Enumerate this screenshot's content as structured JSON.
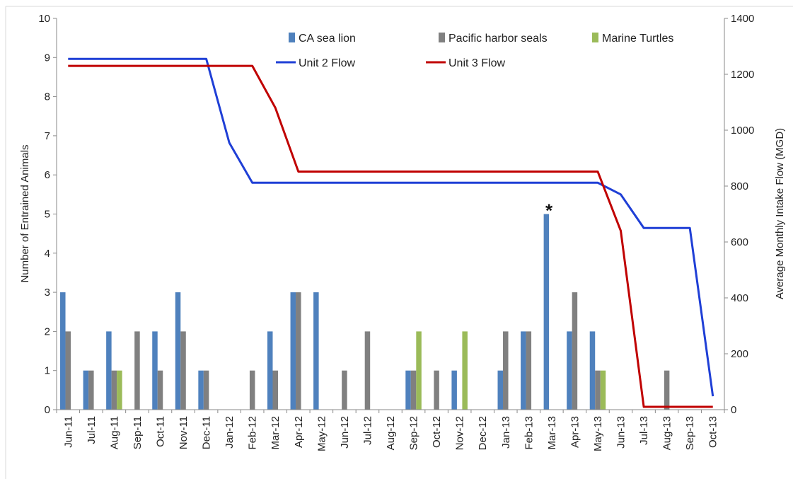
{
  "chart_data": {
    "type": "bar",
    "title": "",
    "categories": [
      "Jun-11",
      "Jul-11",
      "Aug-11",
      "Sep-11",
      "Oct-11",
      "Nov-11",
      "Dec-11",
      "Jan-12",
      "Feb-12",
      "Mar-12",
      "Apr-12",
      "May-12",
      "Jun-12",
      "Jul-12",
      "Aug-12",
      "Sep-12",
      "Oct-12",
      "Nov-12",
      "Dec-12",
      "Jan-13",
      "Feb-13",
      "Mar-13",
      "Apr-13",
      "May-13",
      "Jun-13",
      "Jul-13",
      "Aug-13",
      "Sep-13",
      "Oct-13"
    ],
    "ylabel": "Number of Entrained Animals",
    "y2label": "Average Monthly Intake Flow (MGD)",
    "ylim": [
      0,
      10
    ],
    "y2lim": [
      0,
      1400
    ],
    "yticks": [
      "0",
      "1",
      "2",
      "3",
      "4",
      "5",
      "6",
      "7",
      "8",
      "9",
      "10"
    ],
    "y2ticks": [
      "0",
      "200",
      "400",
      "600",
      "800",
      "1000",
      "1200",
      "1400"
    ],
    "grid": false,
    "legend_position": "top",
    "bar_series": [
      {
        "name": "CA sea lion",
        "color": "#4f81bd",
        "values": [
          3,
          1,
          2,
          0,
          2,
          3,
          1,
          0,
          0,
          2,
          3,
          3,
          0,
          0,
          0,
          1,
          0,
          1,
          0,
          1,
          2,
          5,
          2,
          2,
          0,
          0,
          0,
          0,
          0
        ]
      },
      {
        "name": "Pacific harbor seals",
        "color": "#808080",
        "values": [
          2,
          1,
          1,
          2,
          1,
          2,
          1,
          0,
          1,
          1,
          3,
          0,
          1,
          2,
          0,
          1,
          1,
          0,
          0,
          2,
          2,
          0,
          3,
          1,
          0,
          0,
          1,
          0,
          0
        ]
      },
      {
        "name": "Marine Turtles",
        "color": "#9bbb59",
        "values": [
          0,
          0,
          1,
          0,
          0,
          0,
          0,
          0,
          0,
          0,
          0,
          0,
          0,
          0,
          0,
          2,
          0,
          2,
          0,
          0,
          0,
          0,
          0,
          1,
          0,
          0,
          0,
          0,
          0
        ]
      }
    ],
    "line_series": [
      {
        "name": "Unit 2 Flow",
        "color": "#1f3fd6",
        "axis": "right",
        "values": [
          1255,
          1255,
          1255,
          1255,
          1255,
          1255,
          1255,
          955,
          812,
          812,
          812,
          812,
          812,
          812,
          812,
          812,
          812,
          812,
          812,
          812,
          812,
          812,
          812,
          812,
          770,
          650,
          650,
          650,
          48
        ]
      },
      {
        "name": "Unit 3 Flow",
        "color": "#c00000",
        "axis": "right",
        "values": [
          1230,
          1230,
          1230,
          1230,
          1230,
          1230,
          1230,
          1230,
          1230,
          1080,
          852,
          852,
          852,
          852,
          852,
          852,
          852,
          852,
          852,
          852,
          852,
          852,
          852,
          852,
          640,
          10,
          10,
          10,
          10
        ]
      }
    ],
    "annotations": [
      {
        "text": "*",
        "category": "Mar-13",
        "value": 5
      }
    ]
  }
}
